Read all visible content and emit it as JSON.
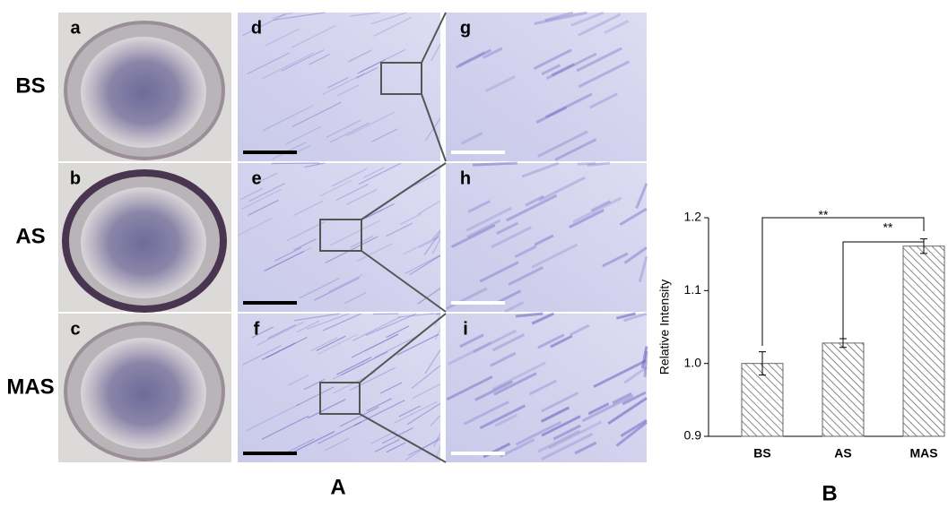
{
  "panel_a": {
    "label": "A",
    "row_labels": [
      "BS",
      "AS",
      "MAS"
    ],
    "image_labels": [
      "a",
      "b",
      "c",
      "d",
      "e",
      "f",
      "g",
      "h",
      "i"
    ]
  },
  "chart_data": {
    "type": "bar",
    "panel_label": "B",
    "y_label": "Relative Intensity",
    "categories": [
      "BS",
      "AS",
      "MAS"
    ],
    "values": [
      1.0,
      1.028,
      1.161
    ],
    "errors": [
      0.016,
      0.006,
      0.01
    ],
    "ylim": [
      0.9,
      1.2
    ],
    "yticks": [
      0.9,
      {
        "value": 1,
        "label": "1.0"
      },
      1.1,
      1.2
    ],
    "annotations": [
      "**",
      "**"
    ]
  }
}
